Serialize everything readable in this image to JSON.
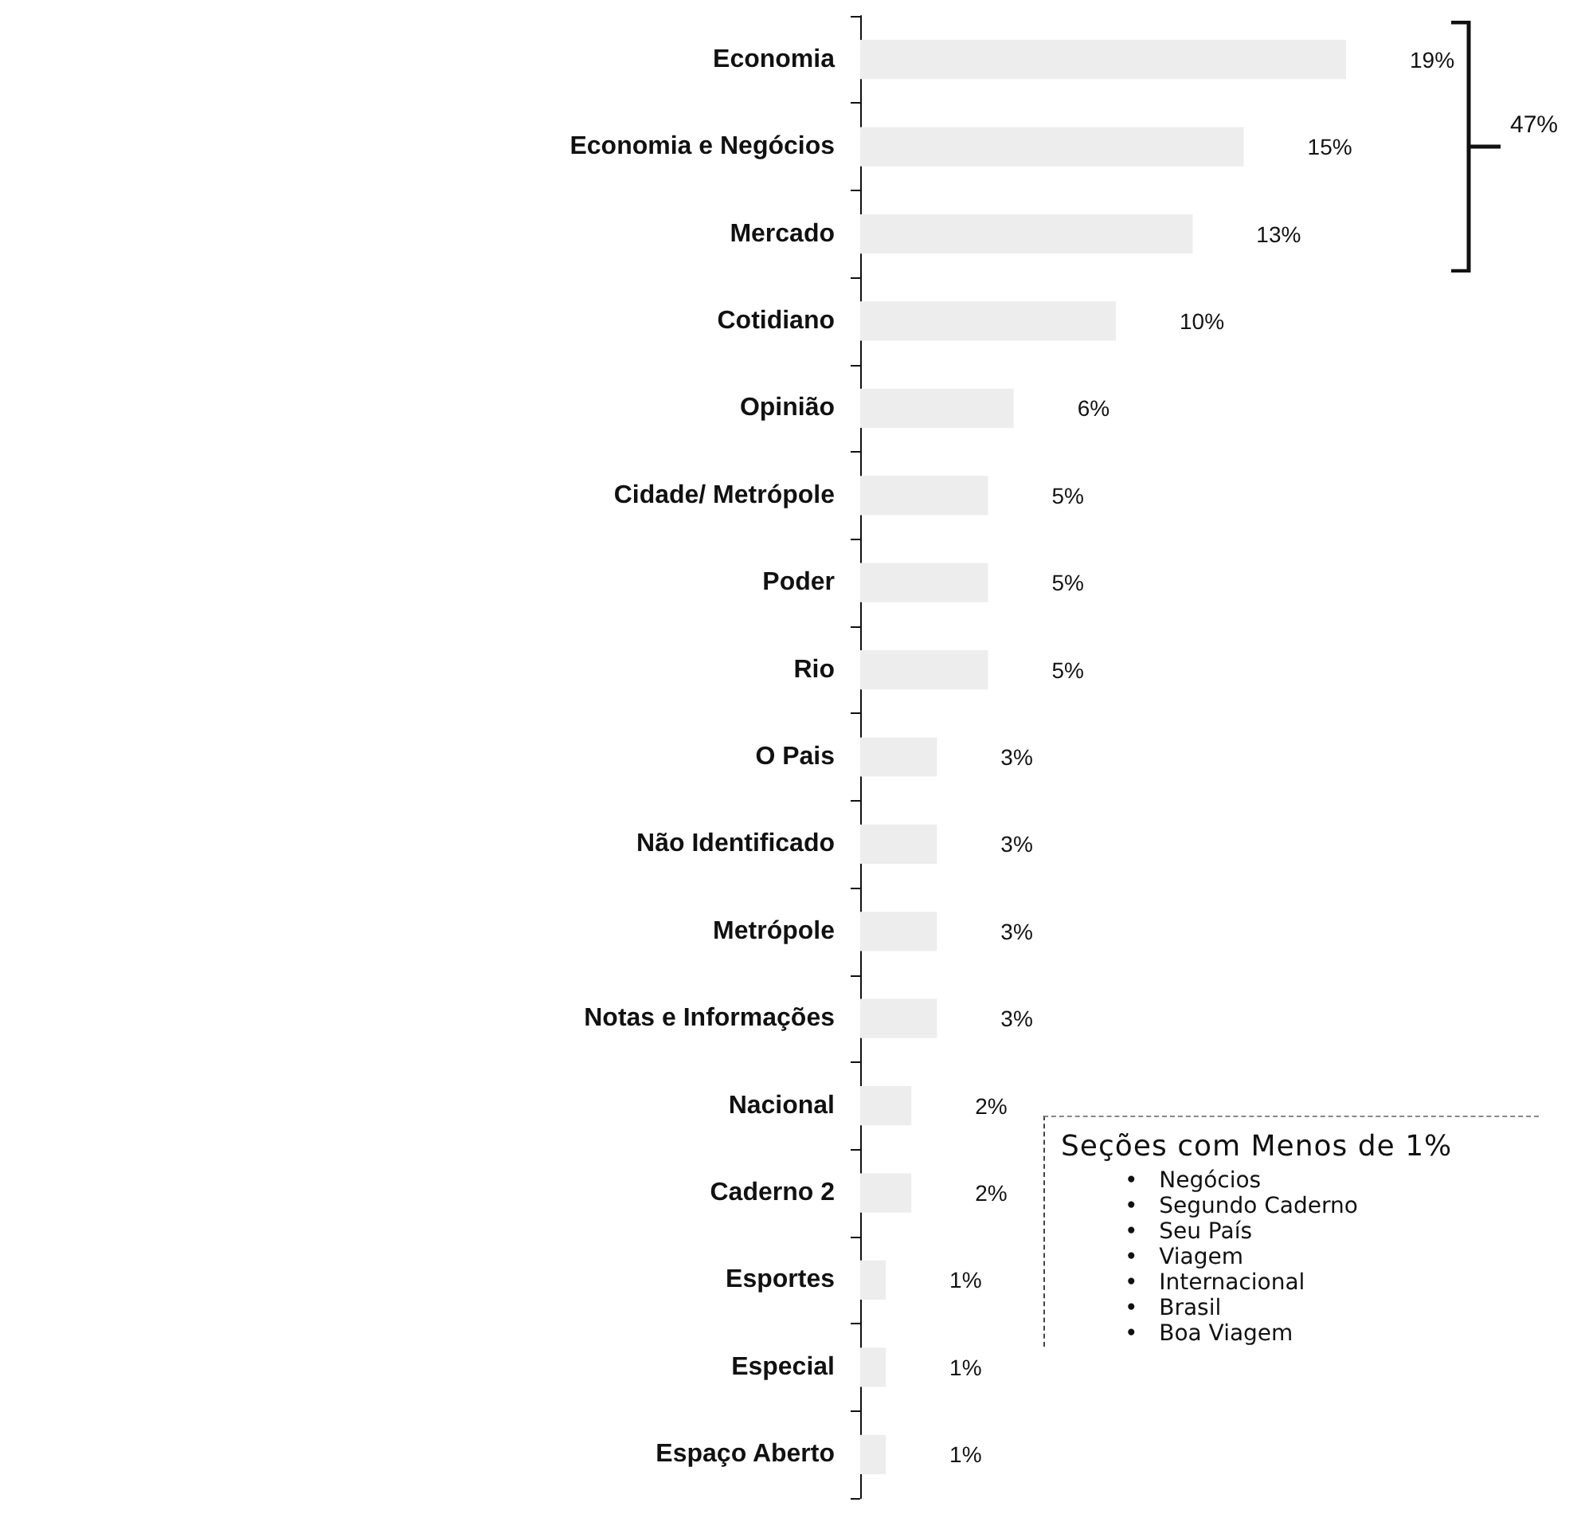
{
  "chart_data": {
    "type": "bar",
    "orientation": "horizontal",
    "color": "#ededed",
    "categories": [
      "Economia",
      "Economia e Negócios",
      "Mercado",
      "Cotidiano",
      "Opinião",
      "Cidade/ Metrópole",
      "Poder",
      "Rio",
      "O Pais",
      "Não Identificado",
      "Metrópole",
      "Notas e Informações",
      "Nacional",
      "Caderno 2",
      "Esportes",
      "Especial",
      "Espaço Aberto"
    ],
    "values": [
      19,
      15,
      13,
      10,
      6,
      5,
      5,
      5,
      3,
      3,
      3,
      3,
      2,
      2,
      1,
      1,
      1
    ],
    "value_labels": [
      "19%",
      "15%",
      "13%",
      "10%",
      "6%",
      "5%",
      "5%",
      "5%",
      "3%",
      "3%",
      "3%",
      "3%",
      "2%",
      "2%",
      "1%",
      "1%",
      "1%"
    ],
    "annotations": [
      "47%",
      "Seções com Menos de 1%",
      "•   Negócios",
      "•   Segundo Caderno",
      "•   Seu País",
      "•   Viagem",
      "•   Internacional",
      "•   Brasil",
      "•   Boa Viagem"
    ]
  }
}
